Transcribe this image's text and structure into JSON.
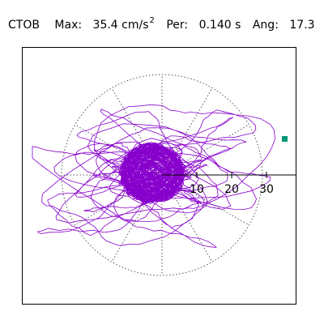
{
  "header": {
    "station": "CTOB",
    "max_label": "Max:",
    "max_value": "35.4 cm/s",
    "max_unit_exponent": "2",
    "period_label": "Per:",
    "period_value": "0.140 s",
    "angle_label": "Ang:",
    "angle_value": "17.3"
  },
  "plot": {
    "radial_ticks": [
      "10",
      "20",
      "30"
    ],
    "trace_color": "#8800cc",
    "marker_color": "#009977",
    "grid_color": "#555555"
  }
}
